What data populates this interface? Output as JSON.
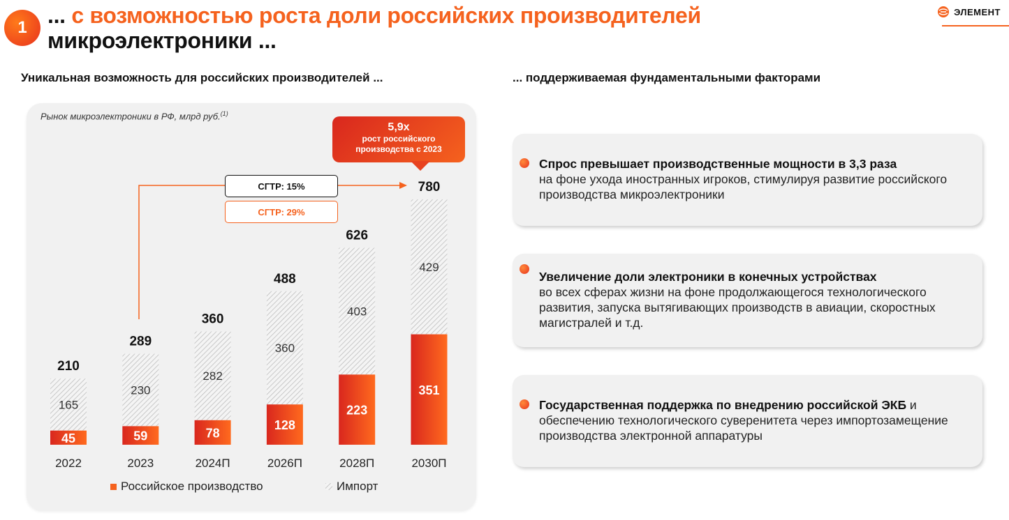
{
  "header": {
    "badge_number": "1",
    "title_prefix": "...",
    "title_orange": "с возможностью роста доли российских производителей",
    "title_line2": "микроэлектроники ...",
    "logo_text": "ЭЛЕМЕНТ"
  },
  "left": {
    "subtitle": "Уникальная возможность для российских производителей ...",
    "caption": "Рынок микроэлектроники в РФ, млрд руб.",
    "caption_note": "(1)",
    "callout_big": "5,9x",
    "callout_line1": "рост российского",
    "callout_line2": "производства с 2023",
    "cagr_1": "СГТР: 15%",
    "cagr_2": "СГТР: 29%",
    "legend_russian": "Российское производство",
    "legend_import": "Импорт"
  },
  "right": {
    "subtitle": "... поддерживаемая фундаментальными факторами",
    "cards": [
      {
        "bold": "Спрос превышает производственные мощности в 3,3 раза",
        "rest": "на фоне ухода иностранных игроков, стимулируя развитие российского производства микроэлектроники"
      },
      {
        "bold": "Увеличение доли электроники в конечных устройствах",
        "rest": "во всех сферах жизни на фоне продолжающегося технологического развития, запуска вытягивающих производств в авиации, скоростных магистралей и т.д."
      },
      {
        "bold": "Государственная поддержка по внедрению российской ЭКБ",
        "rest": "и обеспечению технологического суверенитета через импортозамещение производства электронной аппаратуры"
      }
    ]
  },
  "colors": {
    "accent": "#f5621e",
    "accent_dark": "#d9271e",
    "import_hatch": "#cfcfcf"
  },
  "chart_data": {
    "type": "bar",
    "stacked": true,
    "title": "Рынок микроэлектроники в РФ, млрд руб.",
    "categories": [
      "2022",
      "2023",
      "2024П",
      "2026П",
      "2028П",
      "2030П"
    ],
    "series": [
      {
        "name": "Российское производство",
        "values": [
          45,
          59,
          78,
          128,
          223,
          351
        ]
      },
      {
        "name": "Импорт",
        "values": [
          165,
          230,
          282,
          360,
          403,
          429
        ]
      }
    ],
    "totals": [
      210,
      289,
      360,
      488,
      626,
      780
    ],
    "ylim": [
      0,
      780
    ],
    "legend": "bottom",
    "annotations": [
      "СГТР: 15%",
      "СГТР: 29%",
      "5,9x рост российского производства с 2023"
    ]
  }
}
